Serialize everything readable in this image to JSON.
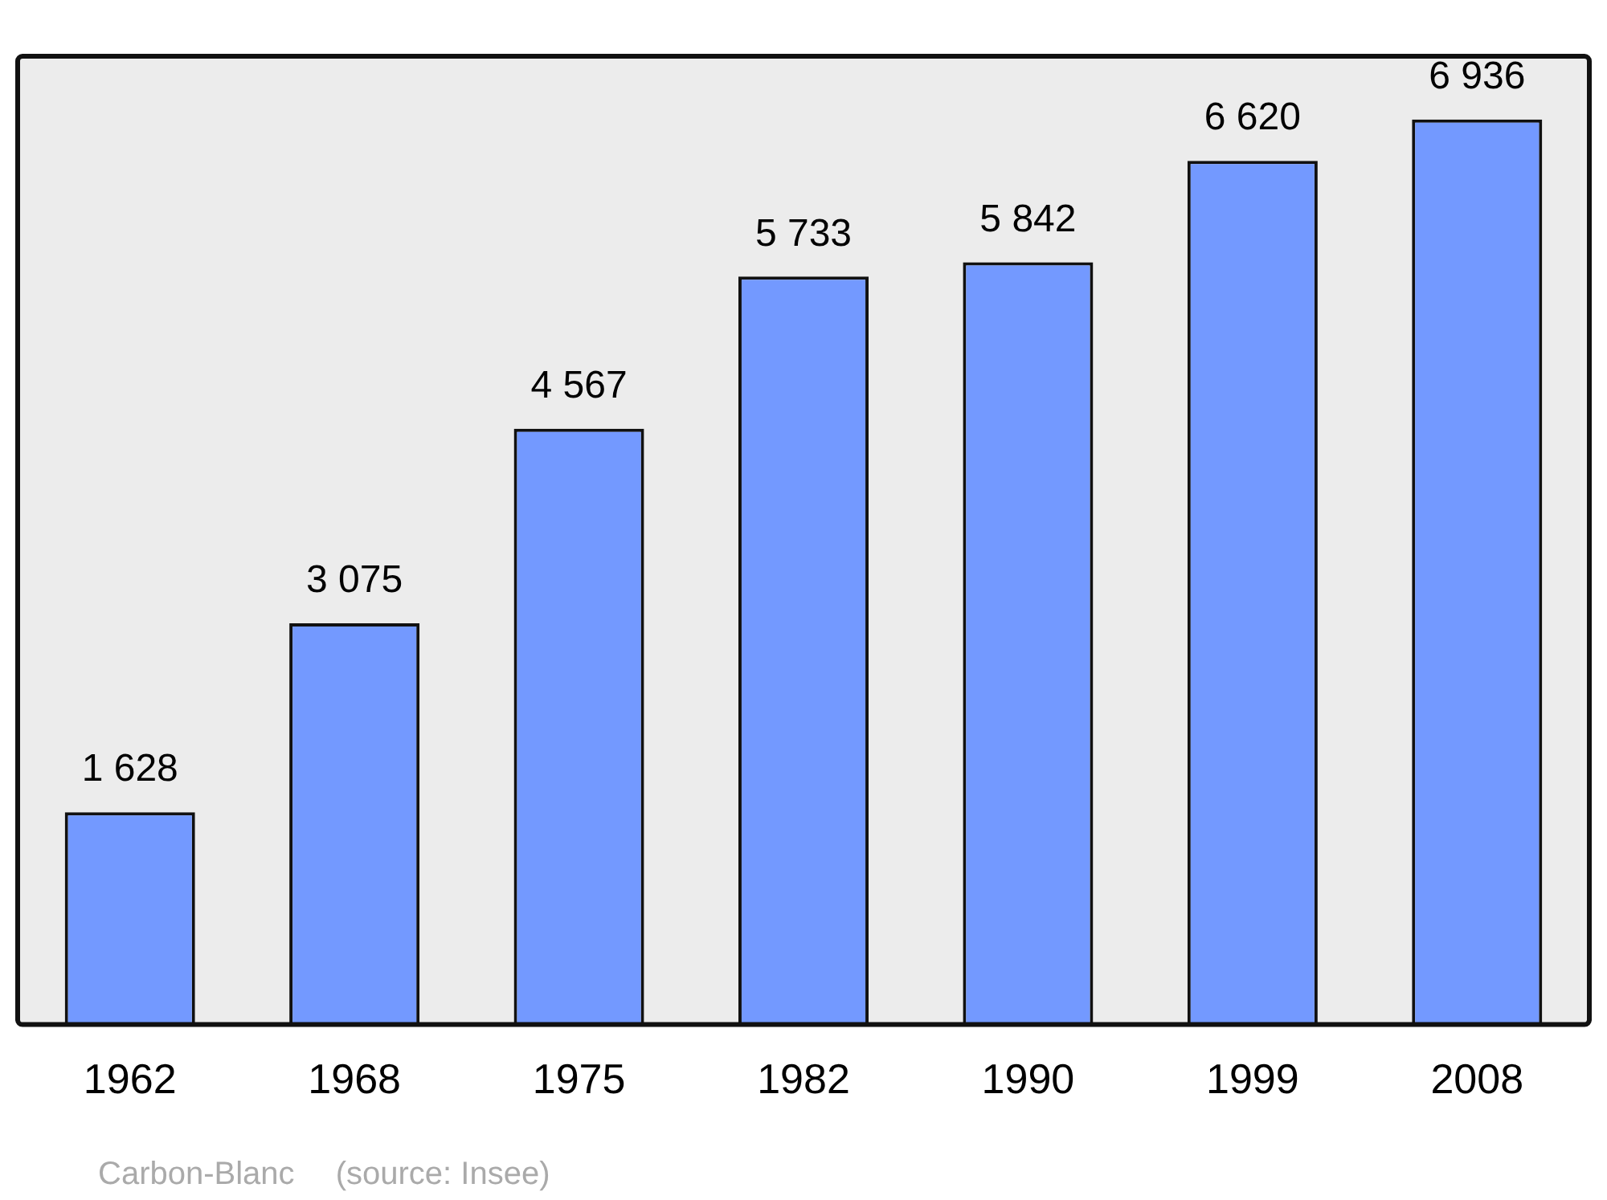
{
  "chart_data": {
    "type": "bar",
    "categories": [
      "1962",
      "1968",
      "1975",
      "1982",
      "1990",
      "1999",
      "2008"
    ],
    "values": [
      1628,
      3075,
      4567,
      5733,
      5842,
      6620,
      6936
    ],
    "value_labels": [
      "1 628",
      "3 075",
      "4 567",
      "5 733",
      "5 842",
      "6 620",
      "6 936"
    ],
    "color": "#7399ff",
    "annotations": [
      "Carbon-Blanc    (source: Insee)"
    ]
  }
}
